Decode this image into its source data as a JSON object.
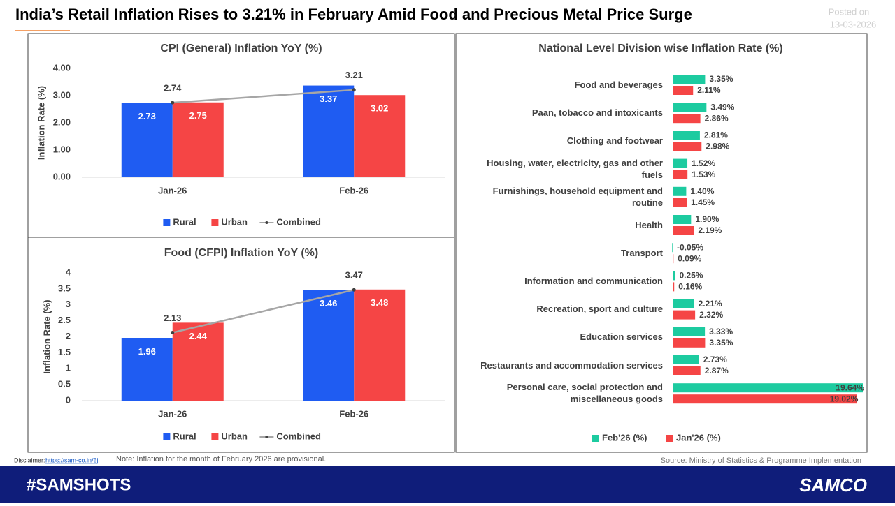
{
  "header": {
    "title": "India’s Retail Inflation Rises to 3.21%  in February Amid Food and Precious Metal Price Surge",
    "posted_label": "Posted on",
    "posted_date": "13-03-2026"
  },
  "chart_data": [
    {
      "type": "bar",
      "title": "CPI (General) Inflation YoY (%)",
      "y_label": "Inflation Rate (%)",
      "categories": [
        "Jan-26",
        "Feb-26"
      ],
      "series": [
        {
          "name": "Rural",
          "color": "#1f5cf2",
          "values": [
            2.73,
            3.37
          ]
        },
        {
          "name": "Urban",
          "color": "#f54545",
          "values": [
            2.75,
            3.02
          ]
        },
        {
          "name": "Combined",
          "color": "#a6a6a6",
          "type": "line",
          "values": [
            2.74,
            3.21
          ]
        }
      ],
      "ylim": [
        0,
        4
      ],
      "yticks": [
        {
          "value": 0,
          "label": "0.00"
        },
        {
          "value": 1,
          "label": "1.00"
        },
        {
          "value": 2,
          "label": "2.00"
        },
        {
          "value": 3,
          "label": "3.00"
        },
        {
          "value": 4,
          "label": "4.00"
        }
      ],
      "legend": "bottom"
    },
    {
      "type": "bar",
      "title": "Food (CFPI) Inflation YoY (%)",
      "y_label": "Inflation Rate (%)",
      "categories": [
        "Jan-26",
        "Feb-26"
      ],
      "series": [
        {
          "name": "Rural",
          "color": "#1f5cf2",
          "values": [
            1.96,
            3.46
          ]
        },
        {
          "name": "Urban",
          "color": "#f54545",
          "values": [
            2.44,
            3.48
          ]
        },
        {
          "name": "Combined",
          "color": "#a6a6a6",
          "type": "line",
          "values": [
            2.13,
            3.47
          ]
        }
      ],
      "ylim": [
        0,
        4
      ],
      "yticks": [
        0,
        0.5,
        1,
        1.5,
        2,
        2.5,
        3,
        3.5,
        4
      ],
      "legend": "bottom"
    },
    {
      "type": "barh",
      "title": "National Level Division wise Inflation Rate (%)",
      "categories": [
        "Food and beverages",
        "Paan, tobacco and intoxicants",
        "Clothing and footwear",
        "Housing, water, electricity, gas and other fuels",
        "Furnishings, household equipment and routine",
        "Health",
        "Transport",
        "Information and communication",
        "Recreation, sport and culture",
        "Education services",
        "Restaurants and accommodation services",
        "Personal care, social protection and miscellaneous goods"
      ],
      "series": [
        {
          "name": "Feb'26 (%)",
          "color": "#1dcba0",
          "values": [
            3.35,
            3.49,
            2.81,
            1.52,
            1.4,
            1.9,
            -0.05,
            0.25,
            2.21,
            3.33,
            2.73,
            19.64
          ],
          "value_labels": [
            "3.35%",
            "3.49%",
            "2.81%",
            "1.52%",
            "1.40%",
            "1.90%",
            "-0.05%",
            "0.25%",
            "2.21%",
            "3.33%",
            "2.73%",
            "19.64%"
          ]
        },
        {
          "name": "Jan'26 (%)",
          "color": "#f54545",
          "values": [
            2.11,
            2.86,
            2.98,
            1.53,
            1.45,
            2.19,
            0.09,
            0.16,
            2.32,
            3.35,
            2.87,
            19.02
          ],
          "value_labels": [
            "2.11%",
            "2.86%",
            "2.98%",
            "1.53%",
            "1.45%",
            "2.19%",
            "0.09%",
            "0.16%",
            "2.32%",
            "3.35%",
            "2.87%",
            "19.02%"
          ]
        }
      ],
      "legend": "bottom"
    }
  ],
  "footer": {
    "disclaimer_label": "Disclaimer:",
    "disclaimer_link": "https://sam-co.in/6j",
    "note": "Note:  Inflation for the month of February 2026 are provisional.",
    "source": "Source: Ministry of Statistics & Programme Implementation",
    "hashtag": "#SAMSHOTS",
    "brand": "SAMCO"
  }
}
